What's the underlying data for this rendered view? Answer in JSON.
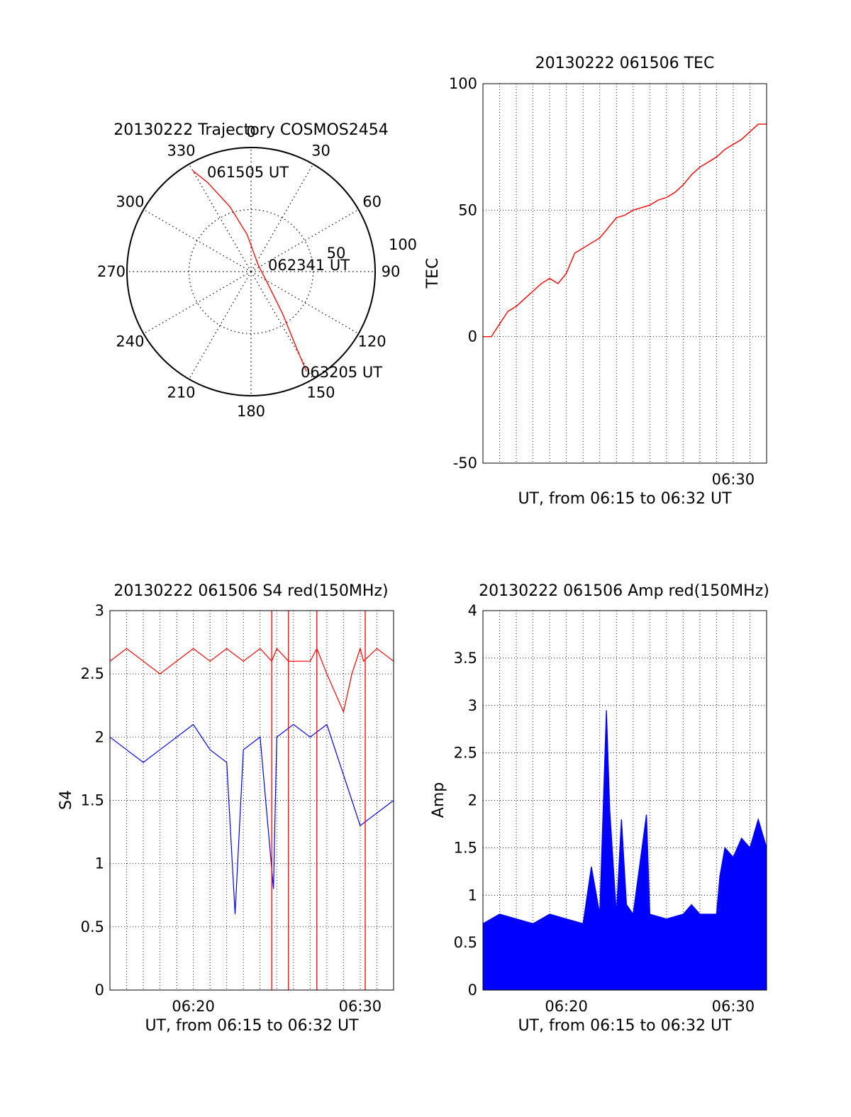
{
  "chart_data": [
    {
      "type": "polar",
      "title": "20130222 Trajectory COSMOS2454",
      "azimuth_labels": [
        "0",
        "30",
        "60",
        "90",
        "120",
        "150",
        "180",
        "210",
        "240",
        "270",
        "300",
        "330"
      ],
      "radial_labels": [
        "50",
        "100"
      ],
      "trajectory": {
        "start_label": "061505 UT",
        "mid_label": "062341 UT",
        "end_label": "063205 UT",
        "points": [
          {
            "az": 330,
            "zd": 94
          },
          {
            "az": 334,
            "zd": 80
          },
          {
            "az": 342,
            "zd": 55
          },
          {
            "az": 354,
            "zd": 30
          },
          {
            "az": 45,
            "zd": 8
          },
          {
            "az": 120,
            "zd": 14
          },
          {
            "az": 143,
            "zd": 42
          },
          {
            "az": 149,
            "zd": 70
          },
          {
            "az": 151,
            "zd": 92
          }
        ],
        "color": "#ff0000"
      }
    },
    {
      "type": "line",
      "title": "20130222 061506 TEC",
      "xlabel": "UT, from 06:15 to 06:32 UT",
      "ylabel": "TEC",
      "xlim": [
        0,
        17
      ],
      "ylim": [
        -50,
        100
      ],
      "x_tick_labels": [
        {
          "x": 15,
          "label": "06:30"
        }
      ],
      "y_tick_labels": [
        "-50",
        "0",
        "50",
        "100"
      ],
      "series": [
        {
          "color": "#ff0000",
          "x": [
            0,
            0.5,
            1,
            1.5,
            2,
            2.5,
            3,
            3.5,
            4,
            4.5,
            5,
            5.5,
            6,
            6.5,
            7,
            7.5,
            8,
            8.5,
            9,
            9.5,
            10,
            10.5,
            11,
            11.5,
            12,
            12.5,
            13,
            13.5,
            14,
            14.5,
            15,
            15.5,
            16,
            16.5,
            17
          ],
          "y": [
            0,
            0,
            5,
            10,
            12,
            15,
            18,
            21,
            23,
            21,
            25,
            33,
            35,
            37,
            39,
            43,
            47,
            48,
            50,
            51,
            52,
            54,
            55,
            57,
            60,
            64,
            67,
            69,
            71,
            74,
            76,
            78,
            81,
            84,
            84
          ]
        }
      ]
    },
    {
      "type": "line",
      "title": "20130222 061506 S4 red(150MHz)",
      "xlabel": "UT, from 06:15 to 06:32 UT",
      "ylabel": "S4",
      "xlim": [
        0,
        17
      ],
      "ylim": [
        0,
        3
      ],
      "x_tick_labels": [
        {
          "x": 5,
          "label": "06:20"
        },
        {
          "x": 15,
          "label": "06:30"
        }
      ],
      "y_tick_labels": [
        "0",
        "0.5",
        "1",
        "1.5",
        "2",
        "2.5",
        "3"
      ],
      "series": [
        {
          "color": "#ff0000",
          "x": [
            0,
            1,
            2,
            3,
            4,
            5,
            6,
            7,
            8,
            9,
            9.7,
            10,
            10.7,
            11,
            12,
            12.4,
            13,
            14,
            14.5,
            15,
            15.2,
            16,
            17
          ],
          "y": [
            2.6,
            2.7,
            2.6,
            2.5,
            2.6,
            2.7,
            2.6,
            2.7,
            2.6,
            2.7,
            2.6,
            2.7,
            2.6,
            2.6,
            2.6,
            2.7,
            2.5,
            2.2,
            2.5,
            2.7,
            2.6,
            2.7,
            2.6
          ],
          "dropouts_to_zero_at_x": [
            9.7,
            10.7,
            12.4,
            15.3
          ]
        },
        {
          "color": "#0000ff",
          "x": [
            0,
            1,
            2,
            3,
            4,
            5,
            6,
            7,
            7.5,
            8,
            9,
            9.8,
            10,
            11,
            12,
            13,
            14,
            14.5,
            15,
            16,
            17
          ],
          "y": [
            2.0,
            1.9,
            1.8,
            1.9,
            2.0,
            2.1,
            1.9,
            1.8,
            0.6,
            1.9,
            2.0,
            0.8,
            2.0,
            2.1,
            2.0,
            2.1,
            1.7,
            1.5,
            1.3,
            1.4,
            1.5
          ]
        }
      ]
    },
    {
      "type": "area",
      "title": "20130222 061506 Amp red(150MHz)",
      "xlabel": "UT, from 06:15 to 06:32 UT",
      "ylabel": "Amp",
      "xlim": [
        0,
        17
      ],
      "ylim": [
        0,
        4
      ],
      "x_tick_labels": [
        {
          "x": 5,
          "label": "06:20"
        },
        {
          "x": 15,
          "label": "06:30"
        }
      ],
      "y_tick_labels": [
        "0",
        "0.5",
        "1",
        "1.5",
        "2",
        "2.5",
        "3",
        "3.5",
        "4"
      ],
      "series": [
        {
          "color": "#0000ff",
          "x": [
            0,
            1,
            2,
            3,
            4,
            5,
            6,
            6.5,
            7,
            7.4,
            7.6,
            8,
            8.3,
            8.6,
            9,
            9.8,
            10,
            11,
            12,
            12.5,
            13,
            14,
            14.2,
            14.5,
            15,
            15.5,
            16,
            16.5,
            17
          ],
          "y": [
            0.7,
            0.8,
            0.75,
            0.7,
            0.8,
            0.75,
            0.7,
            1.3,
            0.8,
            2.95,
            1.9,
            0.8,
            1.8,
            0.9,
            0.8,
            1.85,
            0.8,
            0.75,
            0.8,
            0.9,
            0.8,
            0.8,
            1.2,
            1.5,
            1.4,
            1.6,
            1.5,
            1.8,
            1.5
          ]
        }
      ]
    }
  ]
}
